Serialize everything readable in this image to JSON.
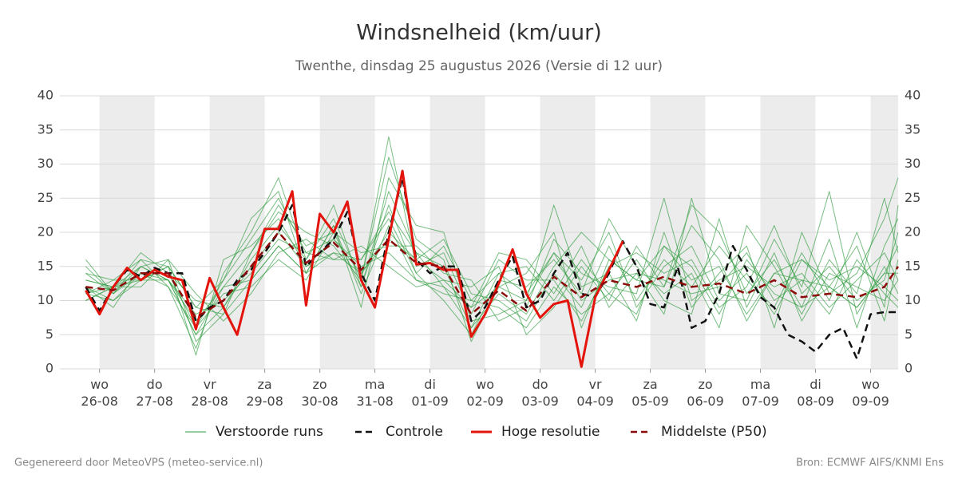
{
  "chart_data": {
    "type": "line",
    "title": "Windsnelheid (km/uur)",
    "subtitle": "Twenthe, dinsdag 25 augustus 2026 (Versie di 12 uur)",
    "footer_left": "Gegenereerd door MeteoVPS (meteo-service.nl)",
    "footer_right": "Bron: ECMWF AIFS/KNMI Ens",
    "xlim": [
      -0.72,
      14.5
    ],
    "xticks": [
      {
        "value": 0,
        "label": "wo 26-08"
      },
      {
        "value": 1,
        "label": "do 27-08"
      },
      {
        "value": 2,
        "label": "vr 28-08"
      },
      {
        "value": 3,
        "label": "za 29-08"
      },
      {
        "value": 4,
        "label": "zo 30-08"
      },
      {
        "value": 5,
        "label": "ma 31-08"
      },
      {
        "value": 6,
        "label": "di 01-09"
      },
      {
        "value": 7,
        "label": "wo 02-09"
      },
      {
        "value": 8,
        "label": "do 03-09"
      },
      {
        "value": 9,
        "label": "vr 04-09"
      },
      {
        "value": 10,
        "label": "za 05-09"
      },
      {
        "value": 11,
        "label": "zo 06-09"
      },
      {
        "value": 12,
        "label": "ma 07-09"
      },
      {
        "value": 13,
        "label": "di 08-09"
      },
      {
        "value": 14,
        "label": "wo 09-09"
      }
    ],
    "ylim": [
      0,
      40
    ],
    "yticks": [
      0,
      5,
      10,
      15,
      20,
      25,
      30,
      35,
      40
    ],
    "y2lim": [
      0,
      40
    ],
    "y2ticks": [
      0,
      5,
      10,
      15,
      20,
      25,
      30,
      35,
      40
    ],
    "grid": true,
    "x": [
      -0.25,
      0.25,
      0.75,
      1.25,
      1.75,
      2.25,
      2.75,
      3.25,
      3.75,
      4.25,
      4.75,
      5.25,
      5.75,
      6.25,
      6.75,
      7.25,
      7.75,
      8.25,
      8.75,
      9.25,
      9.75,
      10.25,
      10.75,
      11.25,
      11.75,
      12.25,
      12.75,
      13.25,
      13.75,
      14.25,
      14.5
    ],
    "ensemble": {
      "name": "Verstoorde runs",
      "color": "#2e9b3e",
      "members": [
        [
          13,
          12,
          15,
          13,
          5,
          12,
          17,
          24,
          18,
          20,
          12,
          26,
          17,
          12,
          6,
          14,
          11,
          17,
          13,
          20,
          9,
          15,
          18,
          10,
          14,
          8,
          16,
          12,
          9,
          14,
          18
        ],
        [
          11,
          10,
          13,
          15,
          9,
          8,
          13,
          18,
          14,
          17,
          16,
          22,
          14,
          18,
          10,
          9,
          6,
          12,
          8,
          11,
          16,
          10,
          8,
          22,
          9,
          17,
          7,
          14,
          12,
          10,
          13
        ],
        [
          14,
          13,
          16,
          12,
          3,
          14,
          20,
          28,
          16,
          22,
          13,
          31,
          19,
          16,
          4,
          12,
          14,
          20,
          6,
          16,
          13,
          18,
          15,
          8,
          16,
          11,
          9,
          19,
          6,
          18,
          22
        ],
        [
          10,
          12,
          12,
          16,
          11,
          7,
          11,
          17,
          19,
          16,
          18,
          15,
          12,
          13,
          12,
          15,
          5,
          9,
          15,
          10,
          18,
          12,
          21,
          16,
          7,
          14,
          13,
          8,
          16,
          11,
          9
        ],
        [
          15,
          11,
          14,
          14,
          6,
          13,
          22,
          26,
          14,
          21,
          9,
          28,
          21,
          20,
          7,
          8,
          10,
          24,
          12,
          14,
          7,
          20,
          9,
          14,
          18,
          6,
          20,
          11,
          14,
          22,
          28
        ],
        [
          12,
          9,
          15,
          13,
          8,
          10,
          14,
          19,
          17,
          19,
          15,
          17,
          13,
          12,
          9,
          17,
          16,
          11,
          18,
          9,
          14,
          8,
          25,
          11,
          10,
          19,
          12,
          26,
          8,
          15,
          11
        ],
        [
          11,
          13,
          13,
          15,
          2,
          16,
          18,
          22,
          15,
          17,
          14,
          20,
          16,
          19,
          11,
          10,
          7,
          14,
          9,
          18,
          10,
          16,
          12,
          18,
          13,
          9,
          17,
          10,
          20,
          9,
          24
        ],
        [
          13,
          12,
          17,
          14,
          10,
          9,
          16,
          21,
          16,
          24,
          12,
          24,
          14,
          10,
          5,
          13,
          12,
          16,
          11,
          22,
          15,
          11,
          14,
          6,
          21,
          15,
          8,
          16,
          11,
          25,
          17
        ],
        [
          12,
          10,
          14,
          12,
          6,
          11,
          12,
          16,
          13,
          20,
          17,
          18,
          18,
          14,
          13,
          7,
          9,
          19,
          14,
          12,
          11,
          25,
          10,
          13,
          15,
          12,
          14,
          9,
          13,
          17,
          13
        ],
        [
          14,
          11,
          15,
          16,
          4,
          8,
          17,
          23,
          20,
          18,
          13,
          34,
          15,
          17,
          8,
          16,
          13,
          13,
          7,
          15,
          17,
          14,
          16,
          9,
          12,
          21,
          11,
          15,
          10,
          13,
          20
        ],
        [
          10,
          12,
          13,
          13,
          7,
          12,
          13,
          18,
          14,
          21,
          11,
          21,
          13,
          11,
          10,
          14,
          15,
          10,
          16,
          11,
          8,
          18,
          13,
          15,
          8,
          14,
          16,
          13,
          15,
          12,
          10
        ],
        [
          16,
          11,
          16,
          15,
          9,
          13,
          19,
          25,
          17,
          16,
          16,
          23,
          17,
          15,
          6,
          11,
          8,
          15,
          20,
          16,
          13,
          12,
          24,
          20,
          11,
          16,
          9,
          12,
          18,
          7,
          16
        ],
        [
          11,
          12,
          14,
          13,
          5,
          9,
          15,
          20,
          15,
          19,
          14,
          19,
          16,
          13,
          9,
          12,
          10,
          17,
          10,
          13,
          14,
          13,
          11,
          12,
          17,
          10,
          13,
          12,
          9,
          14,
          14
        ]
      ]
    },
    "series": [
      {
        "name": "Controle",
        "color": "#111111",
        "dashed": true,
        "x": [
          -0.25,
          0,
          0.25,
          0.5,
          0.75,
          1,
          1.25,
          1.5,
          1.75,
          2,
          2.25,
          2.5,
          2.75,
          3,
          3.25,
          3.5,
          3.75,
          4,
          4.25,
          4.5,
          4.75,
          5,
          5.25,
          5.5,
          5.75,
          6,
          6.25,
          6.5,
          6.75,
          7,
          7.25,
          7.5,
          7.75,
          8,
          8.25,
          8.5,
          8.75,
          9,
          9.25,
          9.5,
          9.75,
          10,
          10.25,
          10.5,
          10.75,
          11,
          11.25,
          11.5,
          11.75,
          12,
          12.25,
          12.5,
          12.75,
          13,
          13.25,
          13.5,
          13.75,
          14,
          14.25,
          14.5
        ],
        "values": [
          12,
          8.5,
          12,
          14.5,
          13.5,
          14.8,
          14,
          14,
          7,
          9,
          10,
          13,
          14.5,
          17,
          20,
          24,
          15,
          17,
          19,
          23,
          14,
          10,
          20,
          28,
          16,
          14,
          15,
          15,
          7,
          9,
          13,
          16.5,
          9,
          10,
          14,
          17,
          11,
          10.5,
          14,
          18.7,
          15,
          9.5,
          9,
          15,
          6,
          7,
          11,
          18,
          14.5,
          10.5,
          9,
          5,
          4,
          2.5,
          5,
          6,
          1.5,
          8,
          8.3,
          8.3
        ]
      },
      {
        "name": "Hoge resolutie",
        "color": "#e3140c",
        "dashed": false,
        "x": [
          -0.25,
          0,
          0.25,
          0.5,
          0.75,
          1,
          1.25,
          1.5,
          1.75,
          2,
          2.25,
          2.5,
          2.75,
          3,
          3.25,
          3.5,
          3.75,
          4,
          4.25,
          4.5,
          4.75,
          5,
          5.25,
          5.5,
          5.75,
          6,
          6.25,
          6.5,
          6.75,
          7,
          7.25,
          7.5,
          7.75,
          8,
          8.25,
          8.5,
          8.75,
          9,
          9.25,
          9.5
        ],
        "values": [
          11.5,
          8,
          12,
          14.8,
          13,
          14.5,
          13.5,
          13,
          5.8,
          13.3,
          9,
          5,
          13,
          20.5,
          20.5,
          26,
          9.3,
          22.7,
          20,
          24.5,
          13,
          9,
          19,
          29,
          15.3,
          15.5,
          14.5,
          14.5,
          4.7,
          8,
          12.5,
          17.5,
          11,
          7.5,
          9.5,
          10,
          0.3,
          10.5,
          14.5,
          18.7
        ]
      },
      {
        "name": "Middelste (P50)",
        "color": "#8b0a0a",
        "dashed": true,
        "values": [
          12,
          11.5,
          14,
          14,
          7.5,
          10,
          15,
          20,
          15.5,
          18.5,
          14.5,
          19,
          15.5,
          15,
          8,
          11.5,
          8.5,
          13.5,
          10.5,
          13,
          12,
          13.5,
          12,
          12.5,
          11,
          13,
          10.5,
          11,
          10.5,
          12,
          15
        ]
      }
    ]
  }
}
